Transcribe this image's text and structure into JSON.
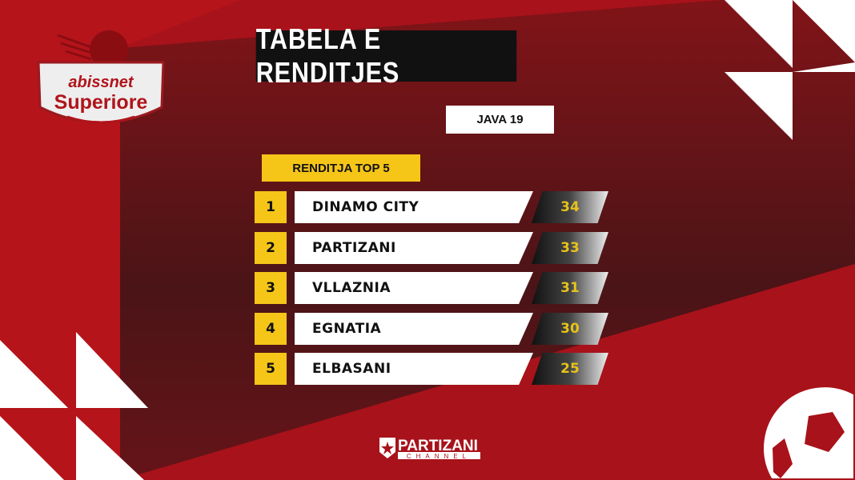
{
  "header": {
    "title": "TABELA E RENDITJES",
    "round": "JAVA 19"
  },
  "logo": {
    "brand": "abissnet",
    "league": "Superiore"
  },
  "table": {
    "heading": "RENDITJA TOP 5",
    "rows": [
      {
        "rank": "1",
        "team": "DINAMO CITY",
        "points": "34"
      },
      {
        "rank": "2",
        "team": "PARTIZANI",
        "points": "33"
      },
      {
        "rank": "3",
        "team": "VLLAZNIA",
        "points": "31"
      },
      {
        "rank": "4",
        "team": "EGNATIA",
        "points": "30"
      },
      {
        "rank": "5",
        "team": "ELBASANI",
        "points": "25"
      }
    ]
  },
  "footer": {
    "channel_name": "PARTIZANI",
    "channel_sub": "CHANNEL"
  },
  "colors": {
    "red": "#a8121a",
    "yellow": "#f5c518",
    "black": "#111111"
  }
}
